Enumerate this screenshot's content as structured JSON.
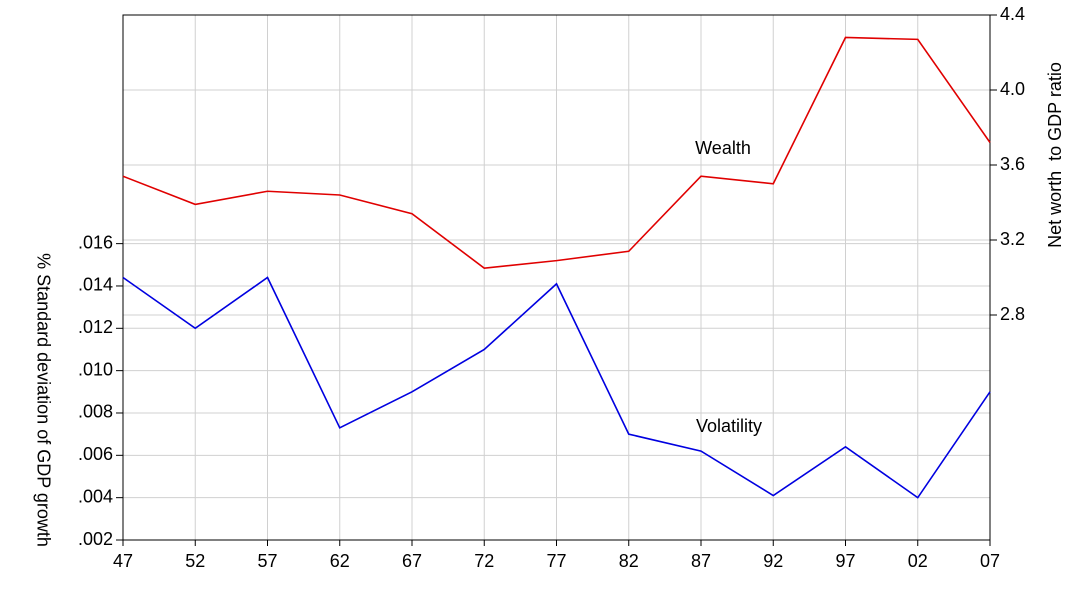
{
  "chart_data": {
    "type": "line",
    "y_label": "% Standard deviation of GDP growth",
    "y2_label": "Net worth  to GDP ratio",
    "annotations": [
      "Wealth",
      "Volatility"
    ],
    "categories": [
      "47",
      "52",
      "57",
      "62",
      "67",
      "72",
      "77",
      "82",
      "87",
      "92",
      "97",
      "02",
      "07"
    ],
    "series": [
      {
        "name": "Wealth",
        "color": "#e00000",
        "axis": "y2",
        "values": [
          3.54,
          3.39,
          3.46,
          3.44,
          3.34,
          3.05,
          3.09,
          3.14,
          3.54,
          3.5,
          4.28,
          4.27,
          3.72
        ]
      },
      {
        "name": "Volatility",
        "color": "#0000e0",
        "values": [
          0.0144,
          0.012,
          0.0144,
          0.0073,
          0.009,
          0.011,
          0.0141,
          0.007,
          0.0062,
          0.0041,
          0.0064,
          0.004,
          0.009
        ]
      }
    ],
    "ylim": [
      0.002,
      0.0268
    ],
    "yticks": [
      {
        "value": 0.002,
        "label": ".002"
      },
      {
        "value": 0.004,
        "label": ".004"
      },
      {
        "value": 0.006,
        "label": ".006"
      },
      {
        "value": 0.008,
        "label": ".008"
      },
      {
        "value": 0.01,
        "label": ".010"
      },
      {
        "value": 0.012,
        "label": ".012"
      },
      {
        "value": 0.014,
        "label": ".014"
      },
      {
        "value": 0.016,
        "label": ".016"
      }
    ],
    "y2lim": [
      1.6,
      4.4
    ],
    "y2ticks": [
      2.8,
      3.2,
      3.6,
      {
        "value": 4.0,
        "label": "4.0"
      },
      4.4
    ],
    "grid": true
  }
}
